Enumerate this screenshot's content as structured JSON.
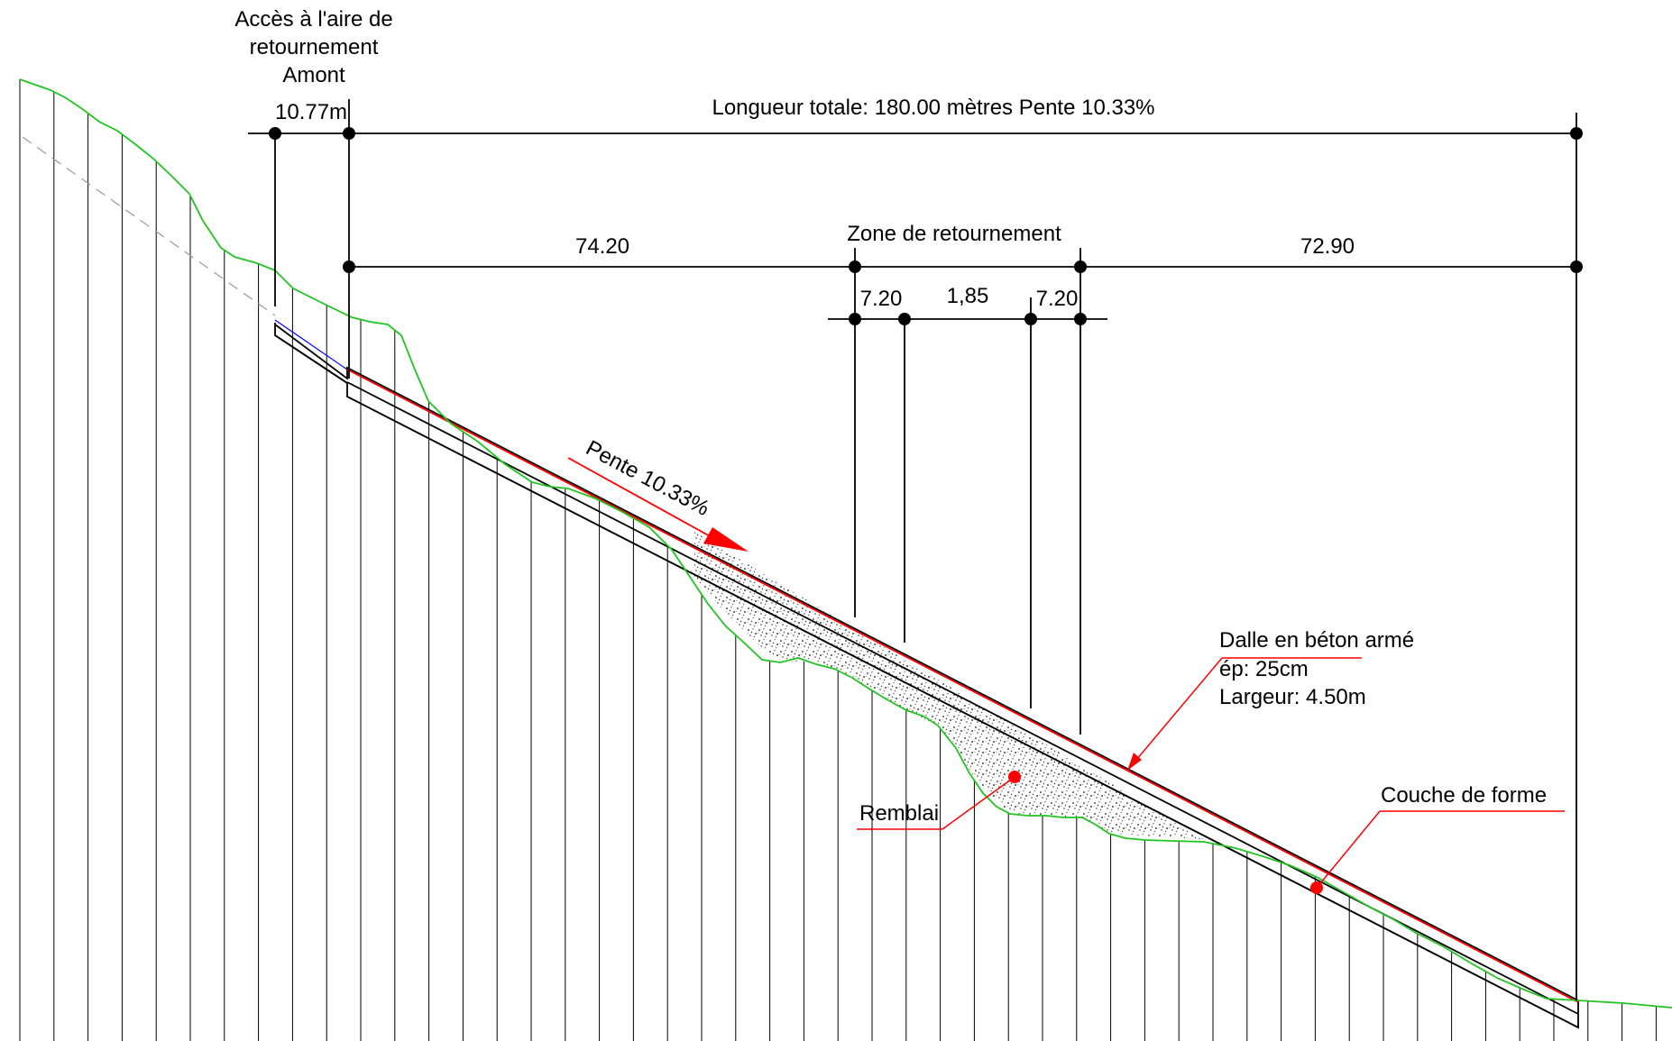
{
  "labels": {
    "access_line1": "Accès à l'aire de",
    "access_line2": "retournement",
    "access_line3": "Amont",
    "access_length": "10.77m",
    "total_length": "Longueur totale: 180.00 mètres    Pente 10.33%",
    "zone": "Zone de retournement",
    "seg_left": "74.20",
    "seg_right": "72.90",
    "sub_a": "7.20",
    "sub_b": "1,85",
    "sub_c": "7.20",
    "slope": "Pente 10.33%",
    "slab_line1": "Dalle en béton armé",
    "slab_line2": "ép: 25cm",
    "slab_line3": "Largeur: 4.50m",
    "fill": "Remblai",
    "subgrade": "Couche de forme"
  },
  "colors": {
    "terrain": "#22c422",
    "road_top": "#ff0000",
    "outline": "#000000",
    "marker": "#ff0000",
    "existing_slope": "#0000ff",
    "fill_hatch": "#6e6e6e"
  }
}
